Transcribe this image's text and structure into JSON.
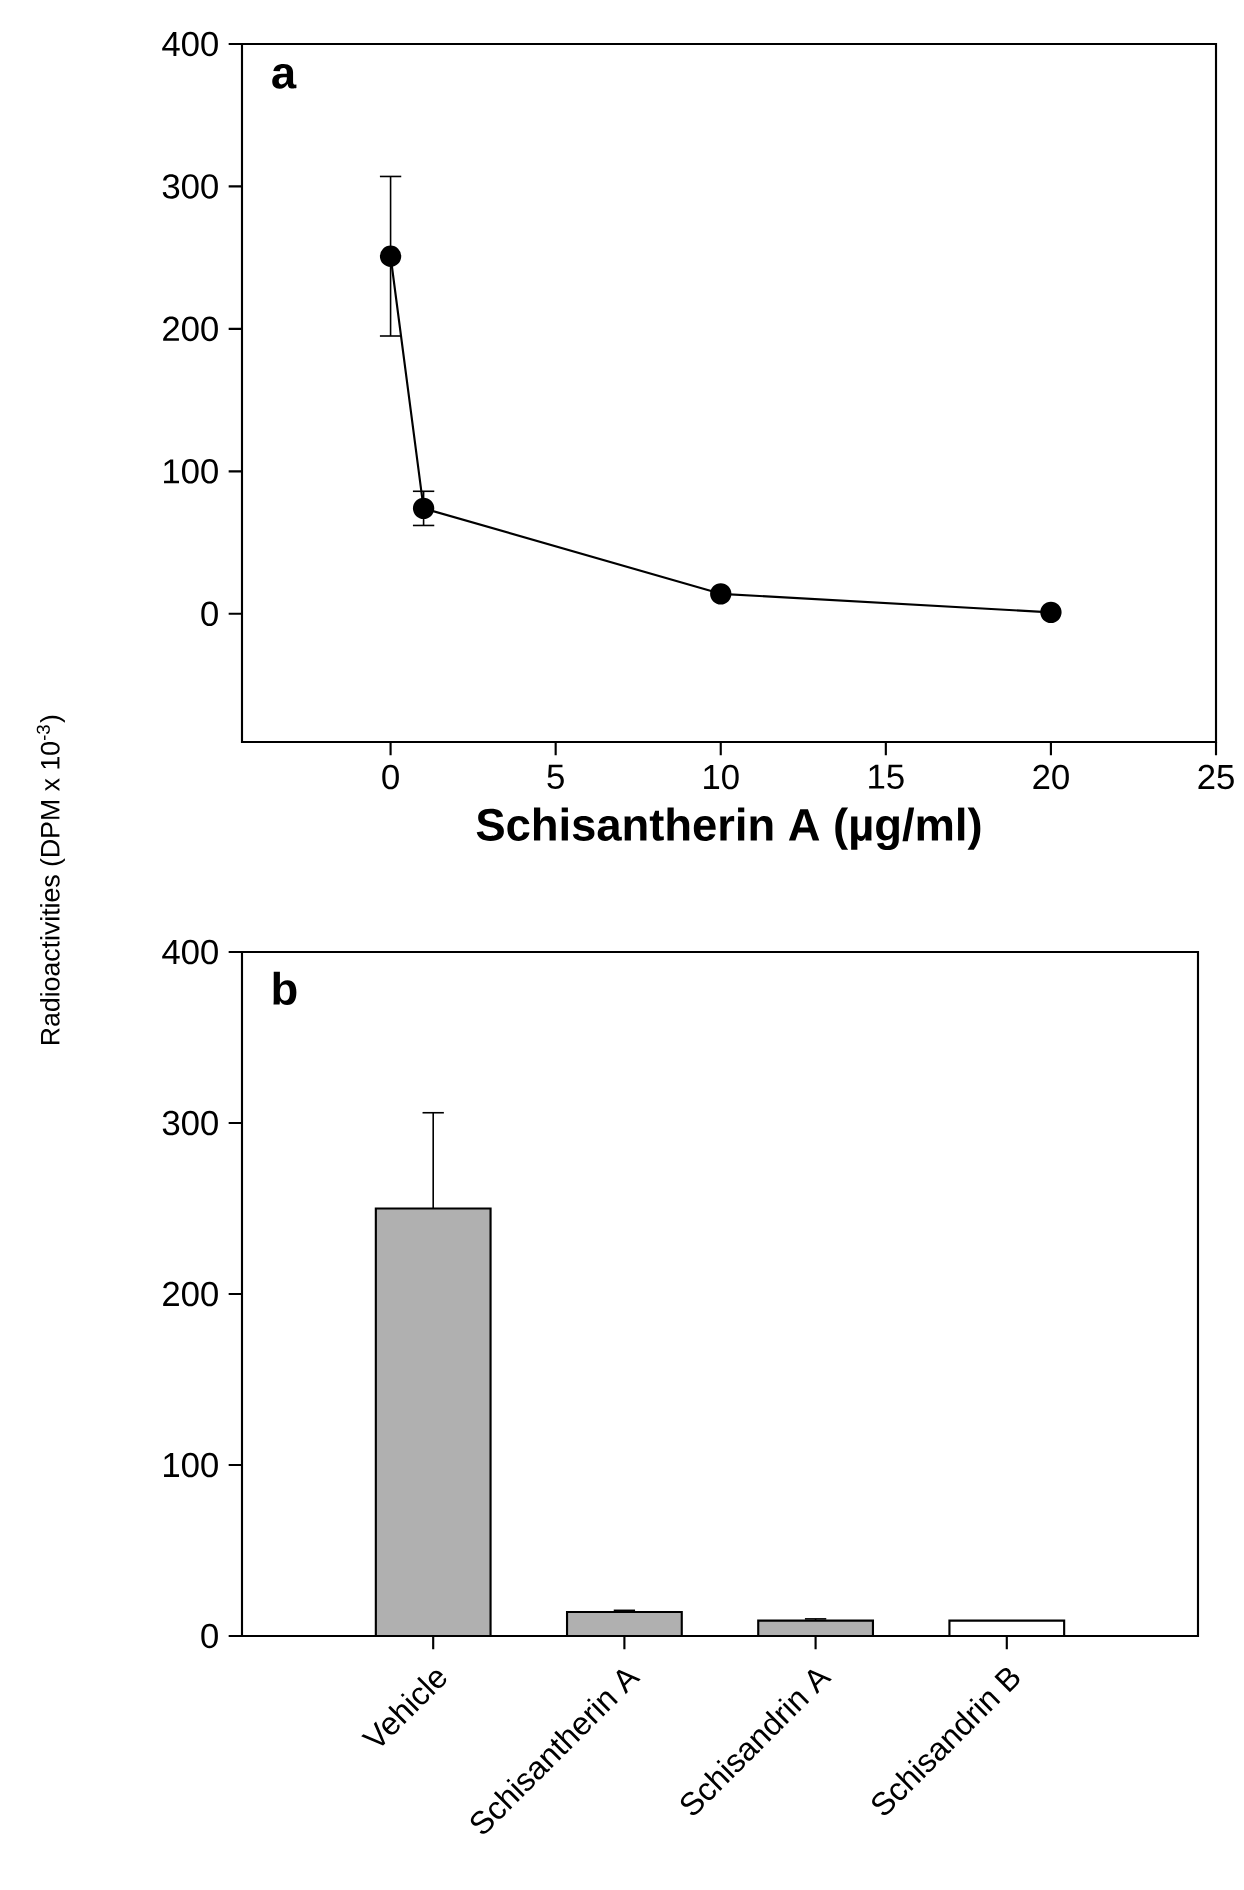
{
  "chart_data": [
    {
      "type": "line",
      "x": [
        0,
        1,
        10,
        20
      ],
      "values": [
        251,
        74,
        14,
        1
      ],
      "errors": [
        56,
        12,
        null,
        null
      ],
      "color": "#000000",
      "marker": "circle",
      "xlim": [
        -4.5,
        25
      ],
      "ylim": [
        -90,
        400
      ],
      "xticks": [
        0,
        5,
        10,
        15,
        20,
        25
      ],
      "yticks": [
        0,
        100,
        200,
        300,
        400
      ],
      "xlabel": "Schisantherin A (µg/ml)",
      "annotations": [
        "a"
      ]
    },
    {
      "type": "bar",
      "categories": [
        "Vehicle",
        "Schisantherin A",
        "Schisandrin A",
        "Schisandrin B"
      ],
      "values": [
        250,
        14,
        9,
        9
      ],
      "errors": [
        56,
        1,
        1,
        null
      ],
      "colors": [
        "#b0b0b0",
        "#b0b0b0",
        "#b0b0b0",
        "#ffffff"
      ],
      "ylim": [
        0,
        400
      ],
      "yticks": [
        0,
        100,
        200,
        300,
        400
      ],
      "ylabel": "Radioactivities (DPM x 10$^{-3}$)",
      "annotations": [
        "b"
      ]
    }
  ]
}
